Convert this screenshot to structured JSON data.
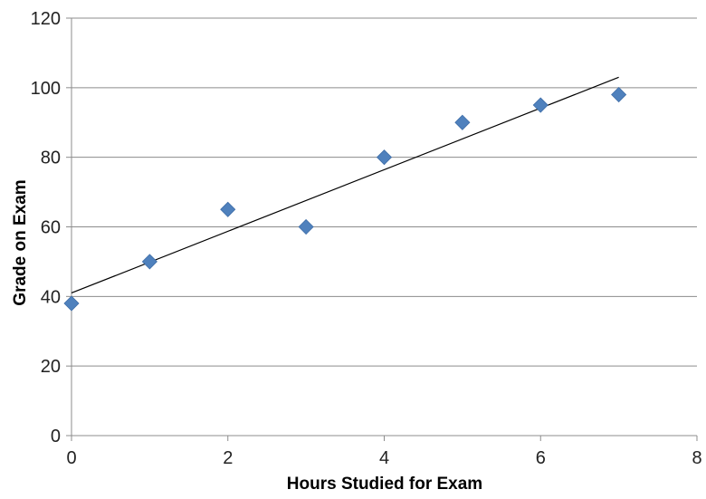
{
  "chart_data": {
    "type": "scatter",
    "title": "",
    "xlabel": "Hours Studied for Exam",
    "ylabel": "Grade on Exam",
    "xlim": [
      0,
      8
    ],
    "ylim": [
      0,
      120
    ],
    "x_ticks": [
      0,
      2,
      4,
      6,
      8
    ],
    "y_ticks": [
      0,
      20,
      40,
      60,
      80,
      100,
      120
    ],
    "grid": "horizontal",
    "legend": "none",
    "series": [
      {
        "x": [
          0,
          1,
          2,
          3,
          4,
          5,
          6,
          7
        ],
        "y": [
          38,
          50,
          65,
          60,
          80,
          90,
          95,
          98
        ],
        "marker": "diamond",
        "color": "#4F81BD"
      }
    ],
    "trendline": {
      "type": "linear",
      "x": [
        0,
        7
      ],
      "y": [
        41,
        103
      ],
      "color": "#000000"
    }
  }
}
